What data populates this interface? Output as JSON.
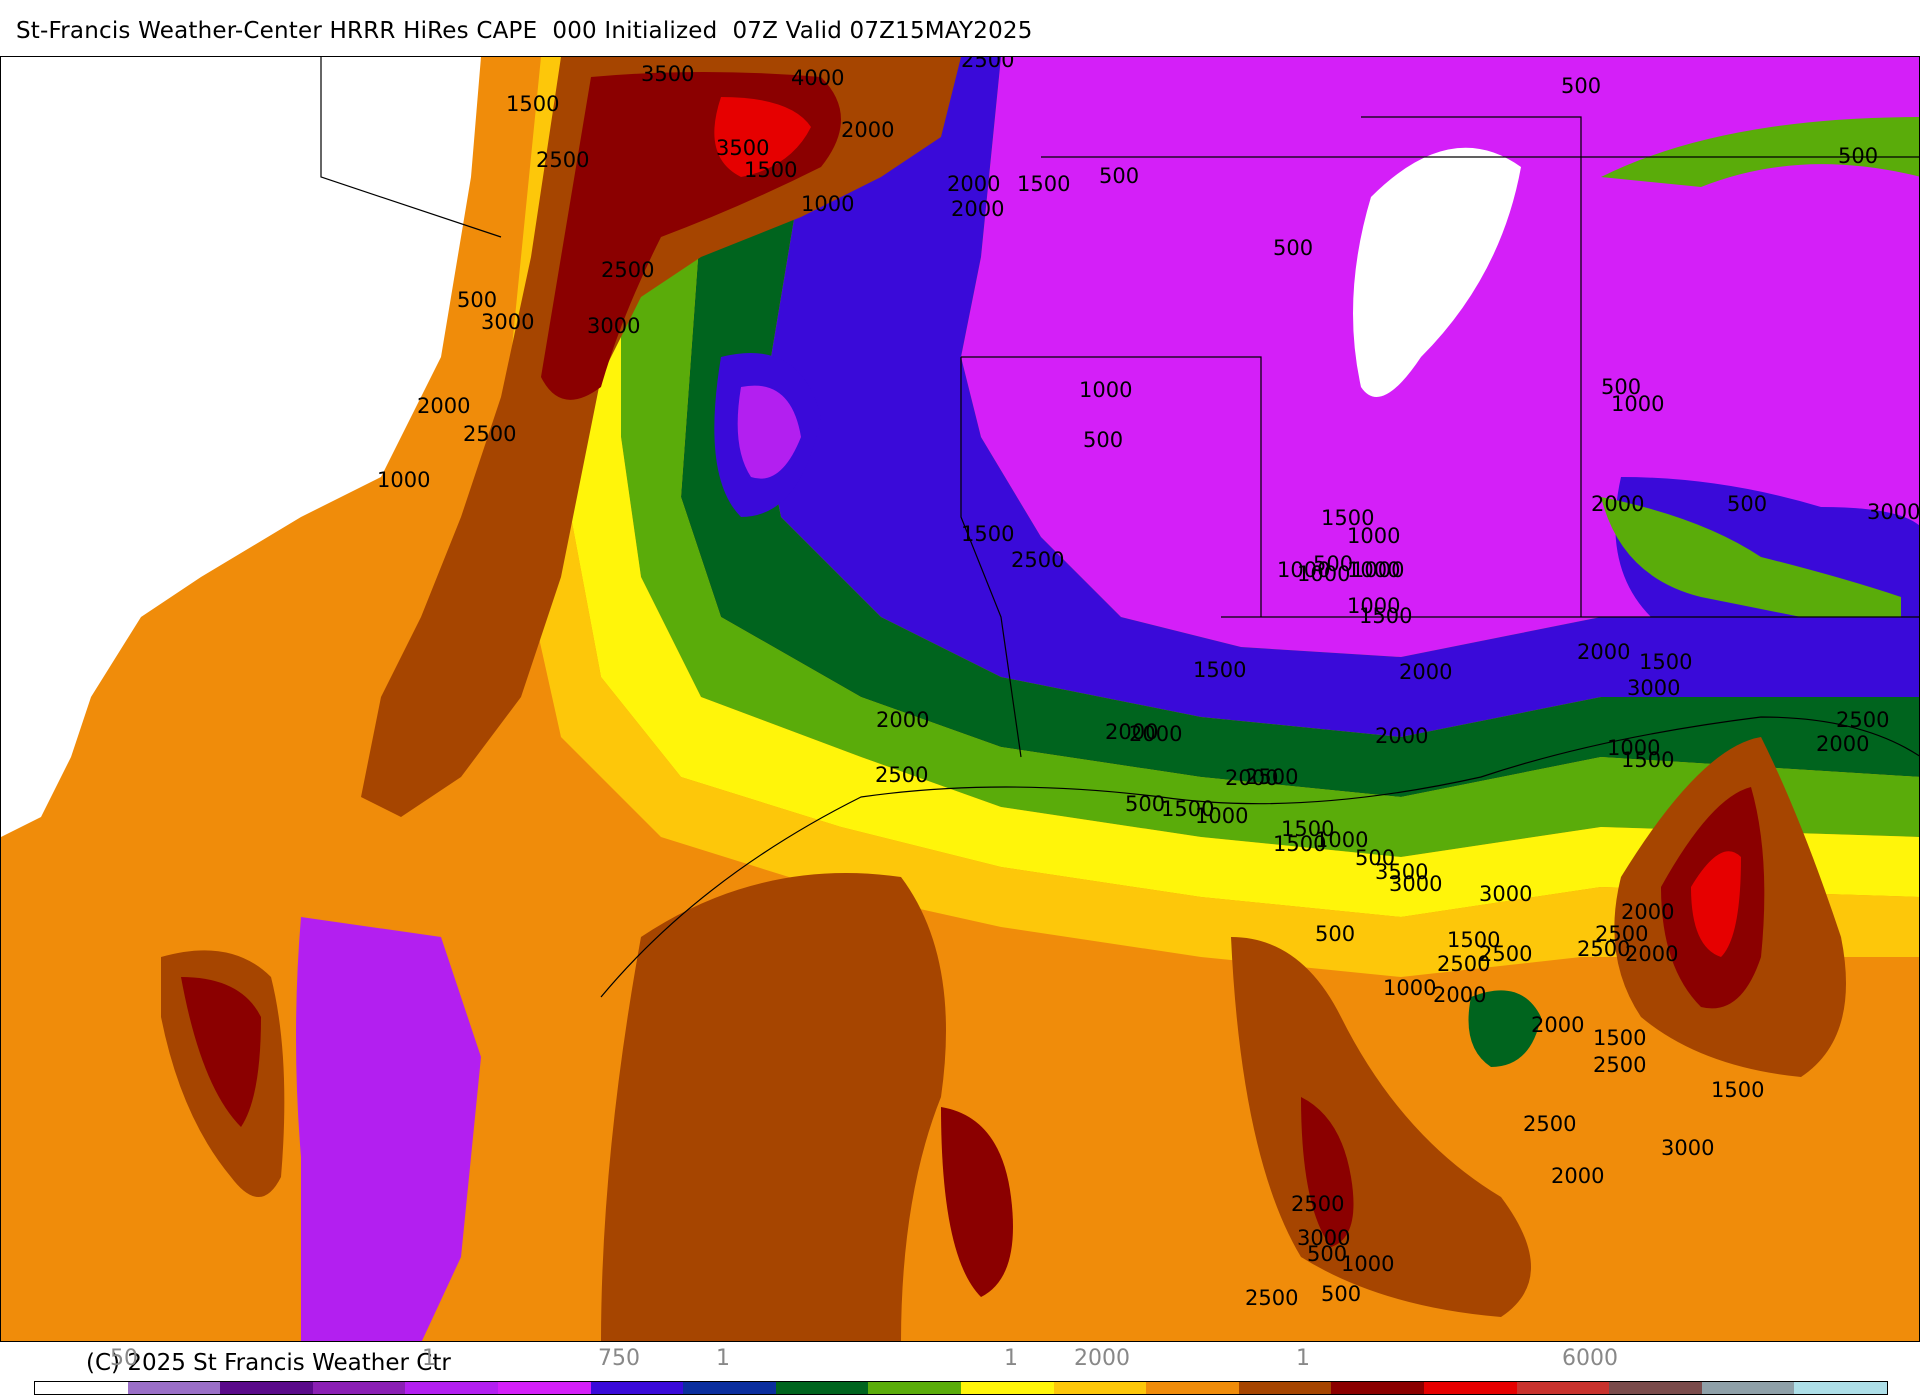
{
  "header": {
    "title": "St-Francis Weather-Center HRRR HiRes CAPE  000 Initialized  07Z Valid 07Z15MAY2025"
  },
  "footer": {
    "copyright": "(C) 2025 St Francis Weather Ctr"
  },
  "colorbar": {
    "labels": [
      {
        "text": "50"
      },
      {
        "text": "1"
      },
      {
        "text": "750"
      },
      {
        "text": "1"
      },
      {
        "text": "1"
      },
      {
        "text": "2000"
      },
      {
        "text": "1"
      },
      {
        "text": "6000"
      }
    ],
    "colors": [
      "#ffffff",
      "#9b6fc7",
      "#5a0a8a",
      "#8b1fb4",
      "#b31ff0",
      "#d41ff8",
      "#3a0ad9",
      "#0b2e9e",
      "#00641e",
      "#5aac0a",
      "#fff50a",
      "#fdc70a",
      "#f08c0a",
      "#a64500",
      "#8b0000",
      "#e60000",
      "#c8322d",
      "#7a4b4b",
      "#8fa0a8",
      "#aedfe8"
    ]
  },
  "map": {
    "contour_labels": [
      {
        "text": "3500"
      },
      {
        "text": "4000"
      },
      {
        "text": "3000"
      },
      {
        "text": "2500"
      },
      {
        "text": "1500"
      },
      {
        "text": "2500"
      },
      {
        "text": "3500"
      },
      {
        "text": "1500"
      },
      {
        "text": "2000"
      },
      {
        "text": "2000"
      },
      {
        "text": "1500"
      },
      {
        "text": "2000"
      },
      {
        "text": "500"
      },
      {
        "text": "1000"
      },
      {
        "text": "500"
      },
      {
        "text": "500"
      },
      {
        "text": "500"
      },
      {
        "text": "2500"
      },
      {
        "text": "500"
      },
      {
        "text": "3000"
      },
      {
        "text": "3000"
      },
      {
        "text": "2000"
      },
      {
        "text": "2500"
      },
      {
        "text": "1000"
      },
      {
        "text": "1000"
      },
      {
        "text": "500"
      },
      {
        "text": "1000"
      },
      {
        "text": "500"
      },
      {
        "text": "500"
      },
      {
        "text": "3000"
      },
      {
        "text": "1500"
      },
      {
        "text": "2500"
      },
      {
        "text": "2000"
      },
      {
        "text": "1500"
      },
      {
        "text": "1000"
      },
      {
        "text": "1500"
      },
      {
        "text": "1000"
      },
      {
        "text": "500"
      },
      {
        "text": "1000"
      },
      {
        "text": "1000"
      },
      {
        "text": "1000"
      },
      {
        "text": "1000"
      },
      {
        "text": "1500"
      },
      {
        "text": "1500"
      },
      {
        "text": "2000"
      },
      {
        "text": "3000"
      },
      {
        "text": "1000"
      },
      {
        "text": "1500"
      },
      {
        "text": "2000"
      },
      {
        "text": "2500"
      },
      {
        "text": "2000"
      },
      {
        "text": "2000"
      },
      {
        "text": "2000"
      },
      {
        "text": "2000"
      },
      {
        "text": "2500"
      },
      {
        "text": "500"
      },
      {
        "text": "1000"
      },
      {
        "text": "2000"
      },
      {
        "text": "1500"
      },
      {
        "text": "1500"
      },
      {
        "text": "500"
      },
      {
        "text": "2500"
      },
      {
        "text": "3000"
      },
      {
        "text": "2000"
      },
      {
        "text": "2500"
      },
      {
        "text": "2000"
      },
      {
        "text": "2500"
      },
      {
        "text": "1500"
      },
      {
        "text": "3000"
      },
      {
        "text": "3500"
      },
      {
        "text": "2000"
      },
      {
        "text": "2500"
      },
      {
        "text": "1500"
      },
      {
        "text": "1000"
      },
      {
        "text": "500"
      },
      {
        "text": "1000"
      },
      {
        "text": "2500"
      },
      {
        "text": "2000"
      },
      {
        "text": "1500"
      },
      {
        "text": "1500"
      },
      {
        "text": "2500"
      },
      {
        "text": "2000"
      },
      {
        "text": "3000"
      },
      {
        "text": "2500"
      },
      {
        "text": "2000"
      },
      {
        "text": "2500"
      },
      {
        "text": "3000"
      },
      {
        "text": "2500"
      },
      {
        "text": "500"
      },
      {
        "text": "1000"
      },
      {
        "text": "500"
      }
    ]
  }
}
